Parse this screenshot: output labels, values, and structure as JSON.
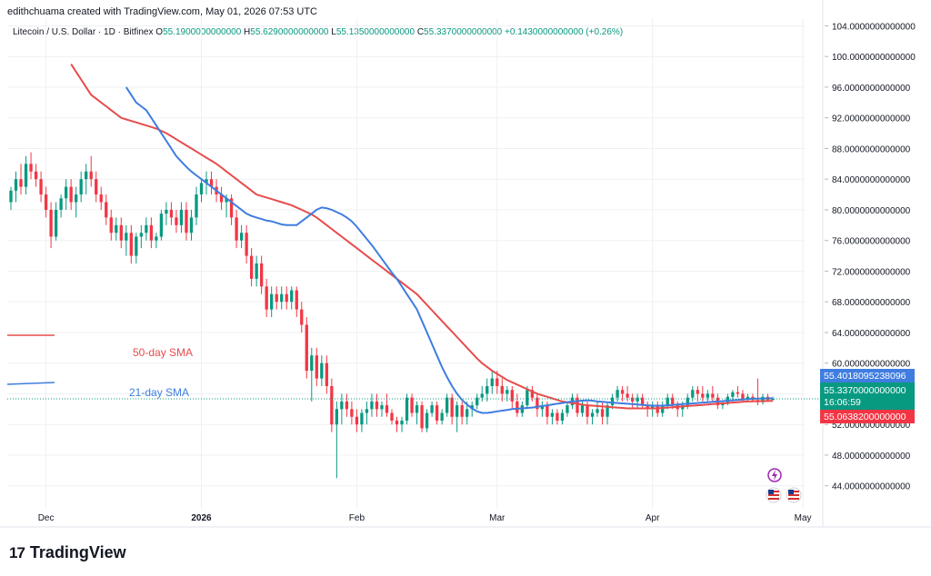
{
  "header": {
    "credit": "edithchuama created with TradingView.com, May 01, 2026 07:53 UTC"
  },
  "symbol": {
    "name": "Litecoin / U.S. Dollar · 1D · Bitfinex",
    "o_label": "O",
    "o_value": "55.1900000000000",
    "h_label": "H",
    "h_value": "55.6290000000000",
    "l_label": "L",
    "l_value": "55.1350000000000",
    "c_label": "C",
    "c_value": "55.3370000000000",
    "change": "+0.1430000000000 (+0.26%)"
  },
  "labels": {
    "sma50": "50-day SMA",
    "sma21": "21-day SMA"
  },
  "price_tags": {
    "sma21": "55.4018095238096",
    "last_price": "55.3370000000000",
    "countdown": "16:06:59",
    "sma50": "55.0638200000000"
  },
  "footer": {
    "brand": "TradingView",
    "mark": "17"
  },
  "colors": {
    "up": "#089981",
    "down": "#f23645",
    "sma50": "#e74c4c",
    "sma21": "#3f7de0",
    "grid": "#eef0f3",
    "axis_text": "#131722"
  },
  "chart_data": {
    "type": "candlestick",
    "ylim": [
      41,
      105
    ],
    "y_ticks": [
      "104.0000000000000",
      "100.0000000000000",
      "96.0000000000000",
      "92.0000000000000",
      "88.0000000000000",
      "84.0000000000000",
      "80.0000000000000",
      "76.0000000000000",
      "72.0000000000000",
      "68.0000000000000",
      "64.0000000000000",
      "60.0000000000000",
      "56.0000000000000",
      "52.0000000000000",
      "48.0000000000000",
      "44.0000000000000"
    ],
    "x_ticks": [
      {
        "label": "Dec",
        "index": 7
      },
      {
        "label": "2026",
        "index": 38
      },
      {
        "label": "Feb",
        "index": 69
      },
      {
        "label": "Mar",
        "index": 97
      },
      {
        "label": "Apr",
        "index": 128
      },
      {
        "label": "May",
        "index": 158
      }
    ],
    "candles": [
      [
        81,
        83,
        80,
        82.5
      ],
      [
        82.5,
        85,
        81,
        84
      ],
      [
        84,
        86,
        82,
        83
      ],
      [
        83,
        87,
        82,
        86
      ],
      [
        86,
        87.5,
        84,
        85
      ],
      [
        85,
        86,
        83,
        84
      ],
      [
        84,
        85,
        81,
        82
      ],
      [
        82,
        83,
        79,
        80
      ],
      [
        80,
        81,
        75,
        76.5
      ],
      [
        76.5,
        81,
        76,
        80
      ],
      [
        80,
        82,
        79,
        81.5
      ],
      [
        81.5,
        84,
        80,
        83
      ],
      [
        83,
        84,
        80,
        81
      ],
      [
        81,
        83,
        79,
        82
      ],
      [
        82,
        85,
        81,
        84
      ],
      [
        84,
        86,
        82,
        85
      ],
      [
        85,
        87,
        83,
        84
      ],
      [
        84,
        85,
        81,
        82
      ],
      [
        82,
        83,
        80,
        81
      ],
      [
        81,
        82,
        78,
        79
      ],
      [
        79,
        80,
        76,
        77
      ],
      [
        77,
        79,
        76,
        78
      ],
      [
        78,
        79,
        75,
        76
      ],
      [
        76,
        78,
        74,
        77
      ],
      [
        77,
        78,
        73,
        74
      ],
      [
        74,
        77,
        73,
        76.5
      ],
      [
        76.5,
        78,
        75,
        77
      ],
      [
        77,
        79,
        76,
        78
      ],
      [
        78,
        79,
        75,
        76
      ],
      [
        76,
        77,
        75,
        76.5
      ],
      [
        76.5,
        80,
        76,
        79.5
      ],
      [
        79.5,
        81,
        78,
        80
      ],
      [
        80,
        81,
        78,
        79
      ],
      [
        79,
        80,
        77,
        78
      ],
      [
        78,
        81,
        77,
        80
      ],
      [
        80,
        81,
        76,
        77
      ],
      [
        77,
        80,
        76,
        79
      ],
      [
        79,
        83,
        78,
        82
      ],
      [
        82,
        84,
        81,
        83.5
      ],
      [
        83.5,
        85,
        82,
        84
      ],
      [
        84,
        85,
        82,
        83
      ],
      [
        83,
        84,
        81,
        82
      ],
      [
        82,
        83,
        80,
        81
      ],
      [
        81,
        82,
        79,
        81.5
      ],
      [
        81.5,
        82,
        78,
        79
      ],
      [
        79,
        80,
        75,
        76
      ],
      [
        76,
        78,
        75,
        77
      ],
      [
        77,
        78,
        73,
        74
      ],
      [
        74,
        75,
        70,
        71
      ],
      [
        71,
        74,
        70,
        73
      ],
      [
        73,
        74,
        69,
        70
      ],
      [
        70,
        71,
        66,
        67
      ],
      [
        67,
        70,
        66,
        69
      ],
      [
        69,
        70,
        67,
        68
      ],
      [
        68,
        70,
        67,
        69
      ],
      [
        69,
        70,
        67,
        68
      ],
      [
        68,
        70,
        67,
        69.5
      ],
      [
        69.5,
        70,
        66,
        67
      ],
      [
        67,
        68,
        64,
        65
      ],
      [
        65,
        66,
        58,
        59
      ],
      [
        59,
        62,
        55,
        61
      ],
      [
        61,
        62,
        57,
        58
      ],
      [
        58,
        61,
        57,
        60
      ],
      [
        60,
        61,
        56,
        57
      ],
      [
        57,
        58,
        51,
        52
      ],
      [
        52,
        55,
        45,
        54
      ],
      [
        54,
        56,
        52,
        55
      ],
      [
        55,
        56,
        53,
        54
      ],
      [
        54,
        55,
        52,
        53
      ],
      [
        53,
        54,
        51,
        52
      ],
      [
        52,
        54,
        51,
        53.5
      ],
      [
        53.5,
        55,
        52,
        54
      ],
      [
        54,
        56,
        53,
        55
      ],
      [
        55,
        56,
        53,
        54
      ],
      [
        54,
        55,
        53,
        54.5
      ],
      [
        54.5,
        56,
        53,
        53.5
      ],
      [
        53.5,
        54,
        52,
        52.5
      ],
      [
        52.5,
        53,
        51,
        52
      ],
      [
        52,
        53,
        51,
        52.5
      ],
      [
        52.5,
        56,
        52,
        55.5
      ],
      [
        55.5,
        56,
        53,
        53.5
      ],
      [
        53.5,
        55,
        52,
        54.5
      ],
      [
        54.5,
        55,
        51,
        51.5
      ],
      [
        51.5,
        54,
        51,
        53.5
      ],
      [
        53.5,
        55,
        53,
        54.5
      ],
      [
        54.5,
        55,
        52,
        52.5
      ],
      [
        52.5,
        54,
        52,
        53.5
      ],
      [
        53.5,
        56,
        53,
        55.5
      ],
      [
        55.5,
        56,
        52,
        53
      ],
      [
        53,
        55,
        51,
        54.5
      ],
      [
        54.5,
        55,
        52,
        53
      ],
      [
        53,
        55,
        52,
        54
      ],
      [
        54,
        55,
        53,
        54.5
      ],
      [
        54.5,
        56,
        54,
        55.5
      ],
      [
        55.5,
        57,
        55,
        56
      ],
      [
        56,
        58,
        55,
        57
      ],
      [
        57,
        59,
        56,
        58
      ],
      [
        58,
        59,
        56,
        57
      ],
      [
        57,
        58,
        55,
        56
      ],
      [
        56,
        57,
        55,
        56.5
      ],
      [
        56.5,
        57,
        54,
        55
      ],
      [
        55,
        56,
        53,
        53.5
      ],
      [
        53.5,
        55,
        53,
        54.5
      ],
      [
        54.5,
        57,
        54,
        56.5
      ],
      [
        56.5,
        57,
        55,
        55.5
      ],
      [
        55.5,
        56,
        53,
        54
      ],
      [
        54,
        55,
        53,
        54.5
      ],
      [
        54.5,
        55,
        52,
        53
      ],
      [
        53,
        54,
        52,
        53.5
      ],
      [
        53.5,
        54,
        52,
        52.5
      ],
      [
        52.5,
        54,
        52,
        53.5
      ],
      [
        53.5,
        55,
        53,
        54.5
      ],
      [
        54.5,
        56,
        54,
        55.5
      ],
      [
        55.5,
        56,
        53,
        53.5
      ],
      [
        53.5,
        55,
        53,
        54.5
      ],
      [
        54.5,
        55,
        52,
        53
      ],
      [
        53,
        54,
        52,
        53.5
      ],
      [
        53.5,
        55,
        53,
        54
      ],
      [
        54,
        55,
        52,
        53
      ],
      [
        53,
        55,
        52,
        54.5
      ],
      [
        54.5,
        56,
        54,
        55.5
      ],
      [
        55.5,
        57,
        55,
        56.5
      ],
      [
        56.5,
        57,
        55,
        56
      ],
      [
        56,
        57,
        55,
        55.5
      ],
      [
        55.5,
        56,
        54,
        55
      ],
      [
        55,
        56,
        54,
        55.5
      ],
      [
        55.5,
        56,
        54,
        54.5
      ],
      [
        54.5,
        55,
        53,
        54
      ],
      [
        54,
        55,
        53,
        54.5
      ],
      [
        54.5,
        55,
        53,
        53.5
      ],
      [
        53.5,
        55,
        53,
        54.5
      ],
      [
        54.5,
        56,
        54,
        55.5
      ],
      [
        55.5,
        56,
        54,
        54.5
      ],
      [
        54.5,
        55,
        53,
        54
      ],
      [
        54,
        55,
        53,
        54.5
      ],
      [
        54.5,
        56,
        54,
        55.5
      ],
      [
        55.5,
        57,
        55,
        56.5
      ],
      [
        56.5,
        57,
        55,
        56
      ],
      [
        56,
        57,
        55,
        55.5
      ],
      [
        55.5,
        56.5,
        55,
        56
      ],
      [
        56,
        57,
        55,
        55.5
      ],
      [
        55.5,
        56,
        54,
        54.5
      ],
      [
        54.5,
        55,
        54,
        54.8
      ],
      [
        54.8,
        56,
        54.5,
        55.6
      ],
      [
        55.6,
        56.5,
        55,
        56.2
      ],
      [
        56.2,
        57,
        55.5,
        56
      ],
      [
        56,
        56.5,
        55,
        55.3
      ],
      [
        55.3,
        56,
        55,
        55.6
      ],
      [
        55.6,
        56,
        55,
        55.2
      ],
      [
        55.2,
        58,
        54.5,
        54.9
      ],
      [
        54.9,
        56,
        54.6,
        55.6
      ],
      [
        55.6,
        56,
        55,
        55.19
      ],
      [
        55.19,
        55.629,
        55.135,
        55.337
      ]
    ],
    "sma50": [
      99,
      98,
      97,
      96,
      95,
      94.5,
      94,
      93.5,
      93,
      92.5,
      92,
      91.8,
      91.6,
      91.4,
      91.2,
      91,
      90.8,
      90.6,
      90.3,
      90,
      89.6,
      89.2,
      88.8,
      88.4,
      88,
      87.6,
      87.2,
      86.8,
      86.4,
      86,
      85.5,
      85,
      84.5,
      84,
      83.5,
      83,
      82.5,
      82,
      81.8,
      81.6,
      81.4,
      81.2,
      81,
      80.8,
      80.6,
      80.3,
      80,
      79.7,
      79.4,
      79,
      78.5,
      78,
      77.5,
      77,
      76.5,
      76,
      75.5,
      75,
      74.5,
      74,
      73.5,
      73,
      72.5,
      72,
      71.5,
      71,
      70.5,
      70,
      69.5,
      69,
      68.3,
      67.6,
      66.9,
      66.2,
      65.5,
      64.8,
      64.1,
      63.4,
      62.7,
      62,
      61.3,
      60.6,
      60,
      59.5,
      59,
      58.6,
      58.2,
      57.8,
      57.5,
      57.2,
      56.9,
      56.6,
      56.3,
      56,
      55.8,
      55.6,
      55.4,
      55.2,
      55,
      54.9,
      54.8,
      54.7,
      54.6,
      54.5,
      54.45,
      54.4,
      54.35,
      54.3,
      54.25,
      54.2,
      54.15,
      54.1,
      54.1,
      54.1,
      54.1,
      54.1,
      54.1,
      54.1,
      54.15,
      54.2,
      54.25,
      54.3,
      54.35,
      54.4,
      54.45,
      54.5,
      54.55,
      54.6,
      54.65,
      54.7,
      54.75,
      54.8,
      54.85,
      54.9,
      54.95,
      55.0,
      55.02,
      55.04,
      55.05,
      55.06,
      55.0638
    ],
    "sma21": [
      96,
      95,
      94,
      93.5,
      93,
      92,
      91,
      90,
      89,
      88,
      87,
      86.3,
      85.6,
      85,
      84.5,
      84,
      83.5,
      83,
      82.5,
      82,
      81.5,
      81,
      80.5,
      80,
      79.5,
      79.2,
      79,
      78.8,
      78.6,
      78.5,
      78.3,
      78.1,
      78,
      78,
      78,
      78.5,
      79,
      79.5,
      80,
      80.3,
      80.2,
      80,
      79.7,
      79.4,
      79,
      78.5,
      77.8,
      77,
      76.2,
      75.4,
      74.5,
      73.6,
      72.7,
      71.8,
      71,
      70,
      69,
      68,
      67,
      65.5,
      64,
      62.5,
      61,
      59.5,
      58.2,
      57,
      56,
      55.2,
      54.6,
      54.1,
      53.7,
      53.5,
      53.5,
      53.6,
      53.7,
      53.8,
      53.9,
      54,
      54.05,
      54.1,
      54.15,
      54.2,
      54.3,
      54.4,
      54.5,
      54.6,
      54.7,
      54.8,
      54.9,
      55,
      55.05,
      55.1,
      55.15,
      55.1,
      55,
      54.95,
      54.9,
      54.85,
      54.8,
      54.75,
      54.7,
      54.65,
      54.6,
      54.55,
      54.5,
      54.45,
      54.45,
      54.45,
      54.5,
      54.55,
      54.6,
      54.65,
      54.7,
      54.75,
      54.8,
      54.85,
      54.9,
      54.95,
      55,
      55.05,
      55.1,
      55.15,
      55.2,
      55.25,
      55.3,
      55.35,
      55.38,
      55.39,
      55.4,
      55.4018
    ]
  }
}
